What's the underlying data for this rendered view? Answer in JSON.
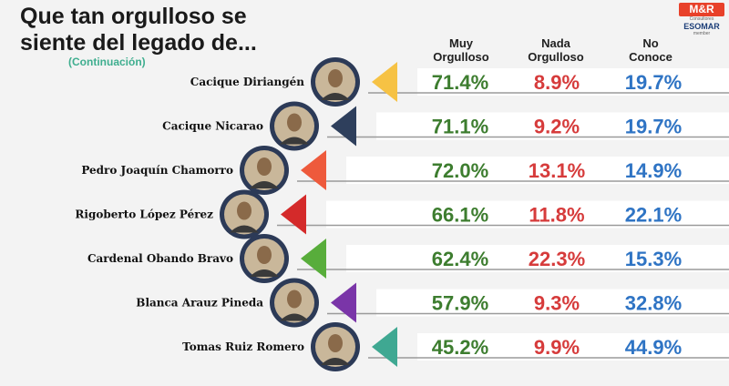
{
  "title_line1": "Que tan orgulloso se",
  "title_line2": "siente del legado de...",
  "subtitle": "(Continuación)",
  "logo": {
    "brand": "M&R",
    "sub": "Consultores",
    "esomar": "ESOMAR",
    "member": "member"
  },
  "colors": {
    "muy": "#3d7d2f",
    "nada": "#d63b3b",
    "no_conoce": "#2f74c4"
  },
  "chart_data": {
    "type": "table",
    "columns": [
      "Muy Orgulloso",
      "Nada Orgulloso",
      "No Conoce"
    ],
    "rows": [
      {
        "name": "Cacique Diriangén",
        "values": [
          71.4,
          8.9,
          19.7
        ],
        "labels": [
          "71.4%",
          "8.9%",
          "19.7%"
        ],
        "arrow_color": "#f6c244",
        "portrait_icon": "indigenous-man-portrait-icon"
      },
      {
        "name": "Cacique Nicarao",
        "values": [
          71.1,
          9.2,
          19.7
        ],
        "labels": [
          "71.1%",
          "9.2%",
          "19.7%"
        ],
        "arrow_color": "#2e3f5c",
        "portrait_icon": "indigenous-elder-portrait-icon"
      },
      {
        "name": "Pedro Joaquín Chamorro",
        "values": [
          72.0,
          13.1,
          14.9
        ],
        "labels": [
          "72.0%",
          "13.1%",
          "14.9%"
        ],
        "arrow_color": "#ee5a3c",
        "portrait_icon": "man-glasses-portrait-icon"
      },
      {
        "name": "Rigoberto López Pérez",
        "values": [
          66.1,
          11.8,
          22.1
        ],
        "labels": [
          "66.1%",
          "11.8%",
          "22.1%"
        ],
        "arrow_color": "#d42a2a",
        "portrait_icon": "young-man-portrait-icon"
      },
      {
        "name": "Cardenal Obando Bravo",
        "values": [
          62.4,
          22.3,
          15.3
        ],
        "labels": [
          "62.4%",
          "22.3%",
          "15.3%"
        ],
        "arrow_color": "#58ad3b",
        "portrait_icon": "cardinal-portrait-icon"
      },
      {
        "name": "Blanca Arauz Pineda",
        "values": [
          57.9,
          9.3,
          32.8
        ],
        "labels": [
          "57.9%",
          "9.3%",
          "32.8%"
        ],
        "arrow_color": "#7a35a8",
        "portrait_icon": "woman-portrait-icon"
      },
      {
        "name": "Tomas Ruiz Romero",
        "values": [
          45.2,
          9.9,
          44.9
        ],
        "labels": [
          "45.2%",
          "9.9%",
          "44.9%"
        ],
        "arrow_color": "#3fa892",
        "portrait_icon": "priest-portrait-icon"
      }
    ]
  }
}
